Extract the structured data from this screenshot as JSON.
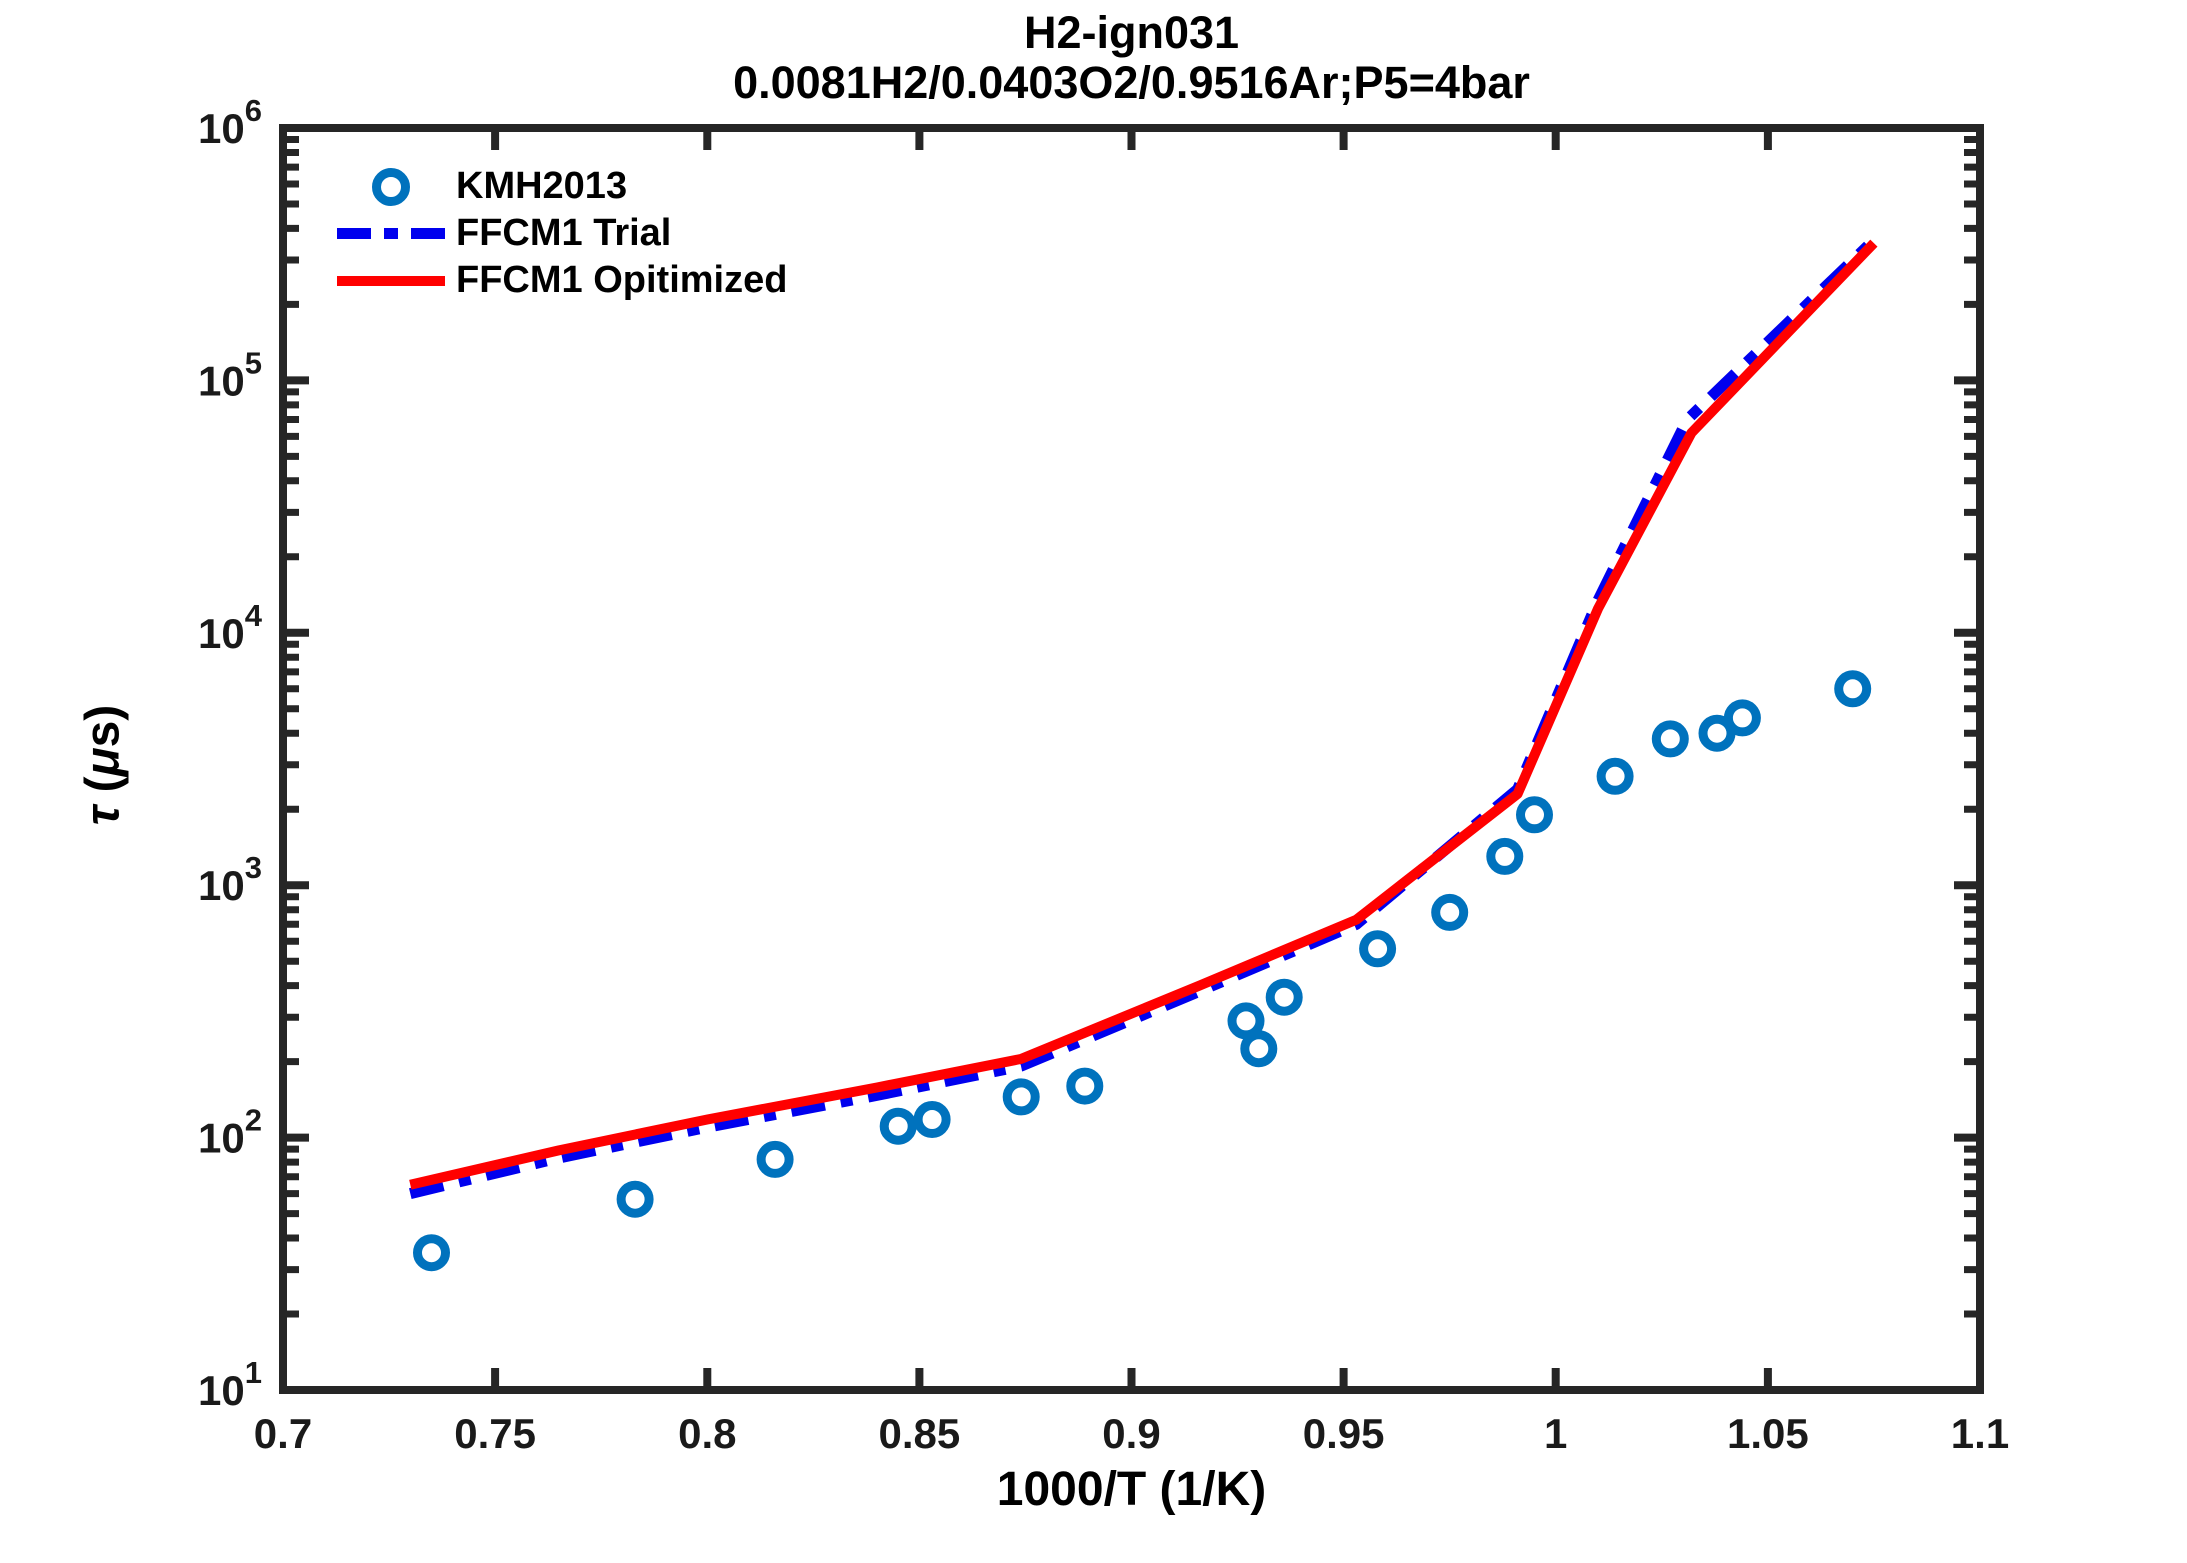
{
  "figure": {
    "title": "H2-ign031",
    "subtitle": "0.0081H2/0.0403O2/0.9516Ar;P5=4bar"
  },
  "legend": {
    "position": "top-left-inside",
    "items": [
      {
        "label": "KMH2013",
        "marker": "open-circle",
        "color": "#0072BD"
      },
      {
        "label": "FFCM1 Trial",
        "marker": "dash-dot-line",
        "color": "#0000EE"
      },
      {
        "label": "FFCM1 Opitimized",
        "marker": "solid-line",
        "color": "#FF0000"
      }
    ]
  },
  "chart_data": {
    "type": "scatter",
    "title": "H2-ign031",
    "subtitle": "0.0081H2/0.0403O2/0.9516Ar;P5=4bar",
    "xlabel": "1000/T (1/K)",
    "ylabel": "τ (μs)",
    "ylabel_parts": [
      "τ",
      " (",
      "μ",
      "s)"
    ],
    "grid": false,
    "x_axis": {
      "scale": "linear",
      "min": 0.7,
      "max": 1.1,
      "ticks": [
        0.7,
        0.75,
        0.8,
        0.85,
        0.9,
        0.95,
        1,
        1.05,
        1.1
      ],
      "tick_labels": [
        "0.7",
        "0.75",
        "0.8",
        "0.85",
        "0.9",
        "0.95",
        "1",
        "1.05",
        "1.1"
      ]
    },
    "y_axis": {
      "scale": "log",
      "min_exp": 1,
      "max_exp": 6,
      "tick_exponents": [
        1,
        2,
        3,
        4,
        5,
        6
      ],
      "tick_labels": [
        "10^1",
        "10^2",
        "10^3",
        "10^4",
        "10^5",
        "10^6"
      ]
    },
    "series": [
      {
        "name": "KMH2013",
        "type": "scatter",
        "marker": "open-circle",
        "color": "#0072BD",
        "points": [
          [
            0.735,
            35
          ],
          [
            0.783,
            57
          ],
          [
            0.816,
            82
          ],
          [
            0.845,
            111
          ],
          [
            0.853,
            118
          ],
          [
            0.874,
            145
          ],
          [
            0.889,
            160
          ],
          [
            0.927,
            290
          ],
          [
            0.93,
            225
          ],
          [
            0.936,
            360
          ],
          [
            0.958,
            560
          ],
          [
            0.975,
            780
          ],
          [
            0.988,
            1300
          ],
          [
            0.995,
            1900
          ],
          [
            1.014,
            2700
          ],
          [
            1.027,
            3800
          ],
          [
            1.038,
            4000
          ],
          [
            1.044,
            4600
          ],
          [
            1.07,
            6000
          ]
        ]
      },
      {
        "name": "FFCM1 Trial",
        "type": "line",
        "line_style": "dash-dot",
        "color": "#0000EE",
        "points": [
          [
            0.73,
            60
          ],
          [
            0.765,
            83
          ],
          [
            0.8,
            110
          ],
          [
            0.84,
            147
          ],
          [
            0.874,
            192
          ],
          [
            0.916,
            380
          ],
          [
            0.953,
            700
          ],
          [
            0.991,
            2400
          ],
          [
            1.01,
            13500
          ],
          [
            1.031,
            70000
          ],
          [
            1.075,
            360000
          ]
        ]
      },
      {
        "name": "FFCM1 Opitimized",
        "type": "line",
        "line_style": "solid",
        "color": "#FF0000",
        "points": [
          [
            0.73,
            65
          ],
          [
            0.765,
            89
          ],
          [
            0.8,
            118
          ],
          [
            0.84,
            158
          ],
          [
            0.874,
            205
          ],
          [
            0.916,
            400
          ],
          [
            0.953,
            730
          ],
          [
            0.991,
            2300
          ],
          [
            1.01,
            12500
          ],
          [
            1.032,
            62000
          ],
          [
            1.075,
            350000
          ]
        ]
      }
    ]
  }
}
